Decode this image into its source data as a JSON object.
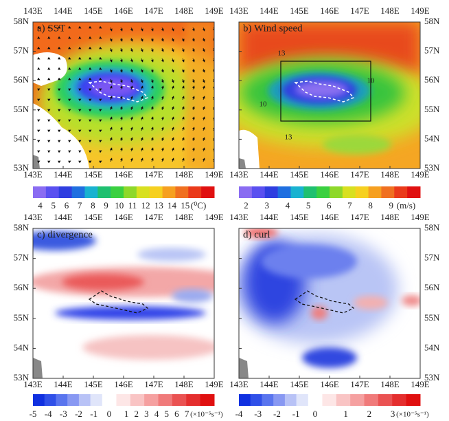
{
  "panels": [
    {
      "label": "a) SST",
      "x_labels": [
        "143E",
        "144E",
        "145E",
        "146E",
        "147E",
        "148E",
        "149E"
      ],
      "y_labels": [
        "58N",
        "57N",
        "56N",
        "55N",
        "54N",
        "53N"
      ],
      "colorbar": {
        "labels": [
          "4",
          "5",
          "6",
          "7",
          "8",
          "9",
          "10",
          "11",
          "12",
          "13",
          "14",
          "15"
        ],
        "unit": "(⁰C)"
      },
      "contour_labels": []
    },
    {
      "label": "b) Wind speed",
      "x_labels": [
        "143E",
        "144E",
        "145E",
        "146E",
        "147E",
        "148E",
        "149E"
      ],
      "y_labels": [
        "58N",
        "57N",
        "56N",
        "55N",
        "54N",
        "53N"
      ],
      "colorbar": {
        "labels": [
          "2",
          "3",
          "4",
          "5",
          "6",
          "7",
          "8",
          "9"
        ],
        "unit": "(m/s)"
      },
      "contour_labels": [
        "13",
        "10",
        "10",
        "13"
      ]
    },
    {
      "label": "c) divergence",
      "x_labels": [
        "143E",
        "144E",
        "145E",
        "146E",
        "147E",
        "148E",
        "149E"
      ],
      "y_labels": [
        "58N",
        "57N",
        "56N",
        "55N",
        "54N",
        "53N"
      ],
      "colorbar": {
        "labels": [
          "-5",
          "-4",
          "-3",
          "-2",
          "-1",
          "0",
          "1",
          "2",
          "3",
          "4",
          "5",
          "6",
          "7"
        ],
        "unit": "(×10⁻⁵s⁻¹)"
      },
      "contour_labels": []
    },
    {
      "label": "d) curl",
      "x_labels": [
        "143E",
        "144E",
        "145E",
        "146E",
        "147E",
        "148E",
        "149E"
      ],
      "y_labels": [
        "58N",
        "57N",
        "56N",
        "55N",
        "54N",
        "53N"
      ],
      "colorbar": {
        "labels": [
          "-4",
          "-3",
          "-2",
          "-1",
          "0",
          "1",
          "2",
          "3"
        ],
        "unit": "(×10⁻⁵s⁻¹)"
      },
      "contour_labels": []
    }
  ]
}
